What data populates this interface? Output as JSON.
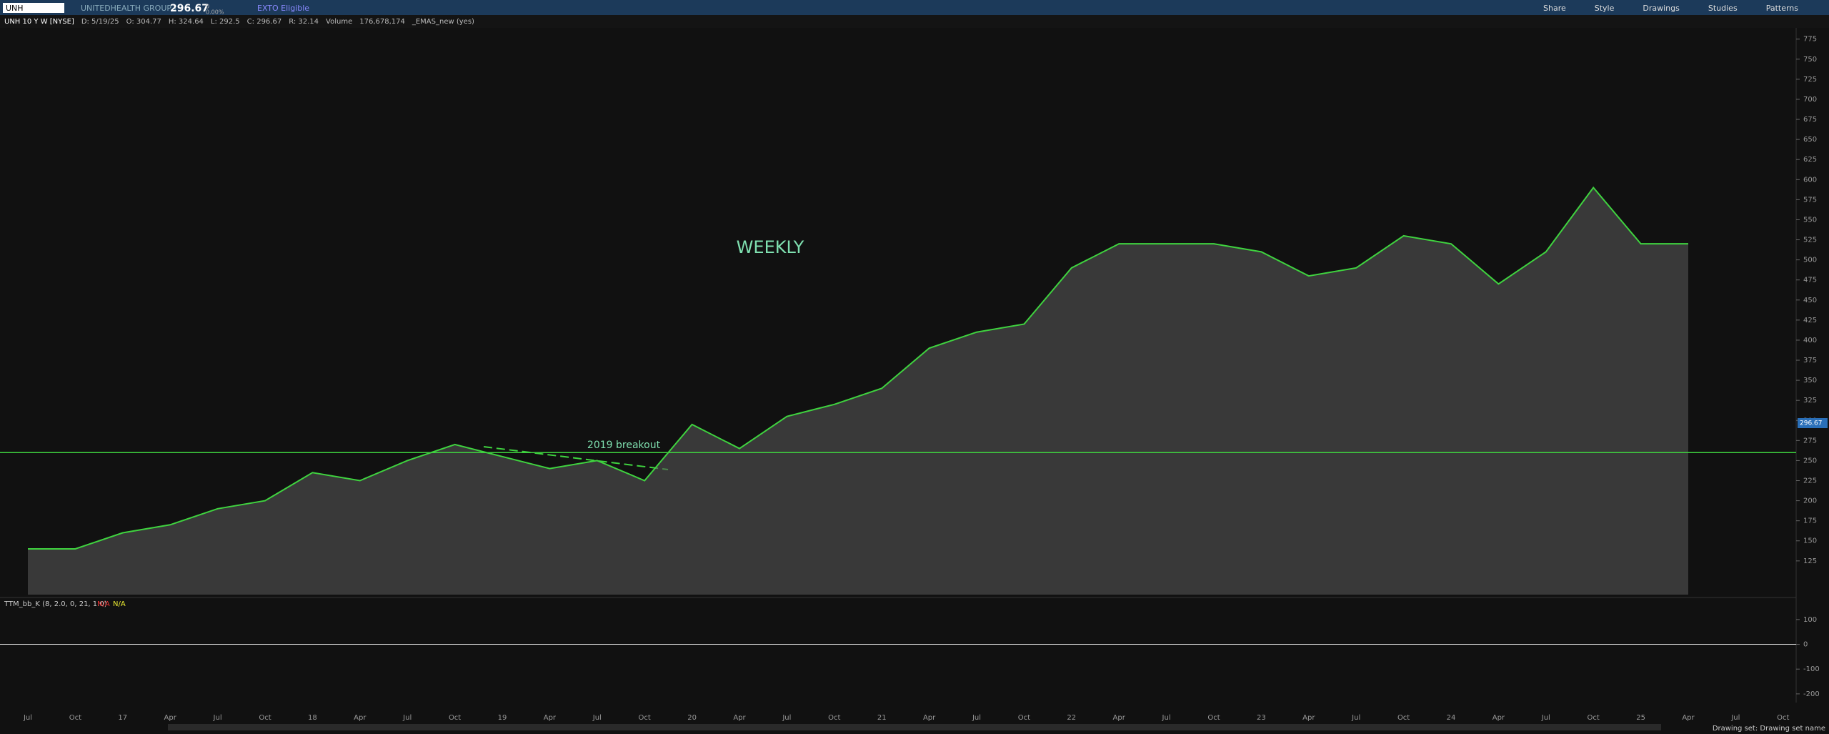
{
  "header": {
    "symbol": "UNH",
    "company": "UNITEDHEALTH GROUP I",
    "last": "296.67",
    "change": "0",
    "change_pct": "0.00%",
    "badge": "EXTO Eligible",
    "tools": [
      "Share",
      "Style",
      "Drawings",
      "Studies",
      "Patterns"
    ]
  },
  "info_bar": {
    "items": [
      "UNH 10 Y W [NYSE]",
      "D: 5/19/25",
      "O: 304.77",
      "H: 324.64",
      "L: 292.5",
      "C: 296.67",
      "R: 32.14",
      "Volume",
      "176,678,174",
      "_EMAS_new (yes)"
    ]
  },
  "chart_data": {
    "type": "line",
    "annotations": [
      "WEEKLY",
      "2019 breakout"
    ],
    "categories": [
      "Jul",
      "Oct",
      "17",
      "Apr",
      "Jul",
      "Oct",
      "18",
      "Apr",
      "Jul",
      "Oct",
      "19",
      "Apr",
      "Jul",
      "Oct",
      "20",
      "Apr",
      "Jul",
      "Oct",
      "21",
      "Apr",
      "Jul",
      "Oct",
      "22",
      "Apr",
      "Jul",
      "Oct",
      "23",
      "Apr",
      "Jul",
      "Oct",
      "24",
      "Apr",
      "Jul",
      "Oct",
      "25",
      "Apr",
      "Jul",
      "Oct"
    ],
    "series": [
      {
        "color": "#3fd33f",
        "values": [
          140,
          140,
          160,
          170,
          190,
          200,
          235,
          225,
          250,
          270,
          255,
          240,
          250,
          225,
          295,
          265,
          305,
          320,
          340,
          390,
          410,
          420,
          490,
          520,
          520,
          520,
          510,
          480,
          490,
          530,
          520,
          470,
          510,
          590,
          520,
          520,
          null,
          null
        ]
      }
    ],
    "reference_line": 260,
    "last_price": 296.67,
    "ylim": [
      83,
      789
    ],
    "yticks": [
      125,
      150,
      175,
      200,
      225,
      250,
      275,
      300,
      325,
      350,
      375,
      400,
      425,
      450,
      475,
      500,
      525,
      550,
      575,
      600,
      625,
      650,
      675,
      700,
      725,
      750,
      775
    ]
  },
  "indicator": {
    "title": "TTM_bb_K (8, 2.0, 0, 21, 1.0)",
    "labels": [
      "N/A",
      "N/A"
    ],
    "ylim": [
      -235,
      189
    ],
    "yticks": [
      100,
      0,
      -100,
      -200
    ]
  },
  "footer": {
    "status": "Drawing set: Drawing set name"
  }
}
